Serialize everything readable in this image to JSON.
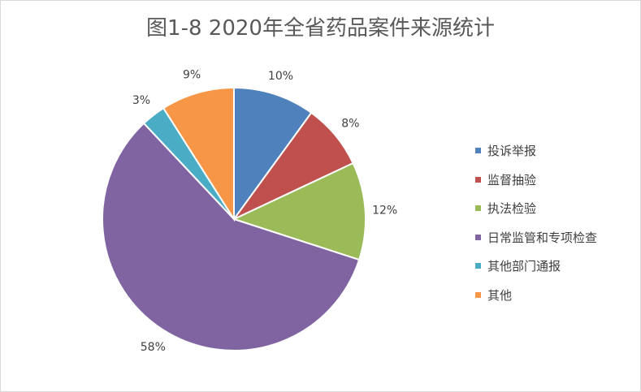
{
  "chart_data": {
    "type": "pie",
    "title": "图1-8  2020年全省药品案件来源统计",
    "categories": [
      "投诉举报",
      "监督抽验",
      "执法检验",
      "日常监管和专项检查",
      "其他部门通报",
      "其他"
    ],
    "values": [
      10,
      8,
      12,
      58,
      3,
      9
    ],
    "value_labels": [
      "10%",
      "8%",
      "12%",
      "58%",
      "3%",
      "9%"
    ],
    "colors": [
      "#4f81bd",
      "#c0504d",
      "#9bbb59",
      "#8064a2",
      "#4bacc6",
      "#f79646"
    ],
    "legend_position": "right"
  }
}
